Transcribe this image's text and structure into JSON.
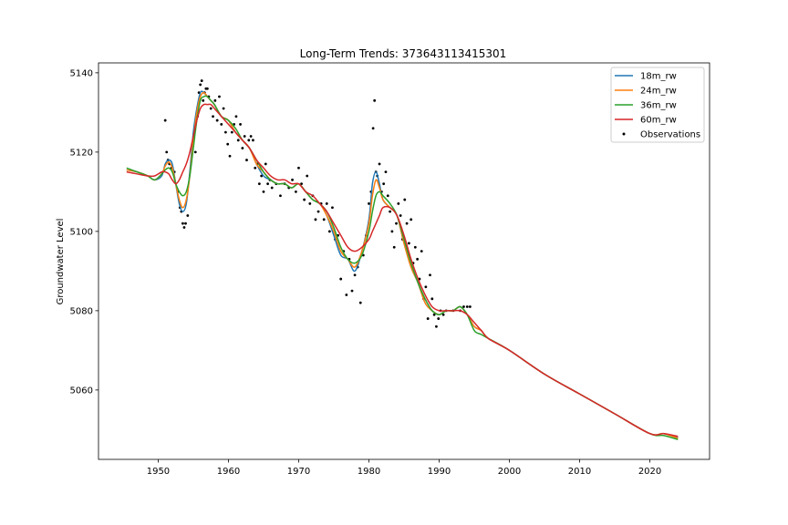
{
  "chart_data": {
    "type": "line",
    "title": "Long-Term Trends: 373643113415301",
    "xlabel": "",
    "ylabel": "Groundwater Level",
    "xlim": [
      1941.5,
      2028.5
    ],
    "ylim": [
      5042.5,
      5142.5
    ],
    "xticks": [
      1950,
      1960,
      1970,
      1980,
      1990,
      2000,
      2010,
      2020
    ],
    "yticks": [
      5060,
      5080,
      5100,
      5120,
      5140
    ],
    "grid": false,
    "legend_position": "top-right",
    "series": [
      {
        "name": "18m_rw",
        "color": "#1f77b4",
        "x": [
          1945.5,
          1947,
          1948.5,
          1949.5,
          1950.5,
          1951,
          1951.5,
          1952,
          1952.5,
          1953,
          1953.5,
          1954,
          1954.5,
          1955,
          1955.5,
          1956,
          1956.5,
          1957,
          1957.5,
          1958,
          1959,
          1960,
          1961,
          1962,
          1963,
          1964,
          1965,
          1966,
          1967,
          1968,
          1969,
          1970,
          1971,
          1972,
          1973,
          1974,
          1975,
          1976,
          1977,
          1978,
          1979,
          1980,
          1980.5,
          1981,
          1981.5,
          1982,
          1983,
          1984,
          1985,
          1986,
          1987,
          1988,
          1989,
          1990,
          1991,
          1992,
          1993,
          1994,
          1995,
          1996,
          1997,
          2000,
          2005,
          2010,
          2015,
          2020,
          2022,
          2024
        ],
        "values": [
          5115.5,
          5115,
          5114,
          5113,
          5114,
          5117,
          5118,
          5117,
          5112,
          5107,
          5105,
          5107,
          5115,
          5125,
          5131,
          5135,
          5135,
          5134,
          5133,
          5132,
          5129,
          5128,
          5125,
          5123,
          5121,
          5117,
          5114,
          5113,
          5112,
          5112,
          5111,
          5112,
          5110,
          5108,
          5107,
          5104,
          5099,
          5094,
          5093,
          5090,
          5095,
          5103,
          5112,
          5115,
          5112,
          5108,
          5106,
          5104,
          5097,
          5091,
          5087,
          5082,
          5080,
          5079,
          5080,
          5080,
          5081,
          5079,
          5076,
          5075,
          5073,
          5070,
          5064,
          5059,
          5054,
          5049,
          5049,
          5048
        ]
      },
      {
        "name": "24m_rw",
        "color": "#ff7f0e",
        "x": [
          1945.5,
          1947,
          1948.5,
          1949.5,
          1950.5,
          1951,
          1951.5,
          1952,
          1952.5,
          1953,
          1953.5,
          1954,
          1954.5,
          1955,
          1955.5,
          1956,
          1956.5,
          1957,
          1957.5,
          1958,
          1959,
          1960,
          1961,
          1962,
          1963,
          1964,
          1965,
          1966,
          1967,
          1968,
          1969,
          1970,
          1971,
          1972,
          1973,
          1974,
          1975,
          1976,
          1977,
          1978,
          1979,
          1980,
          1980.5,
          1981,
          1981.5,
          1982,
          1983,
          1984,
          1985,
          1986,
          1987,
          1988,
          1989,
          1990,
          1991,
          1992,
          1993,
          1994,
          1995,
          1996,
          1997,
          2000,
          2005,
          2010,
          2015,
          2020,
          2022,
          2024
        ],
        "values": [
          5115.5,
          5115,
          5114,
          5113,
          5114.5,
          5116.5,
          5117.5,
          5116,
          5112,
          5108,
          5106,
          5108,
          5114,
          5123,
          5130,
          5134,
          5135,
          5134,
          5133,
          5132,
          5129,
          5128,
          5125,
          5123,
          5121,
          5117,
          5115,
          5113,
          5112,
          5112,
          5111,
          5112,
          5110,
          5108,
          5107,
          5104,
          5100,
          5095,
          5093,
          5091,
          5095,
          5102,
          5109,
          5113,
          5111,
          5108,
          5106,
          5104,
          5097,
          5091,
          5087,
          5082,
          5080,
          5079,
          5080,
          5080,
          5081,
          5079,
          5076,
          5075,
          5073,
          5070,
          5064,
          5059,
          5054,
          5049,
          5049,
          5047.8
        ]
      },
      {
        "name": "36m_rw",
        "color": "#2ca02c",
        "x": [
          1945.5,
          1947,
          1948.5,
          1949.5,
          1950.5,
          1951,
          1951.5,
          1952,
          1952.5,
          1953,
          1953.5,
          1954,
          1954.5,
          1955,
          1955.5,
          1956,
          1956.5,
          1957,
          1957.5,
          1958,
          1959,
          1960,
          1961,
          1962,
          1963,
          1964,
          1965,
          1966,
          1967,
          1968,
          1969,
          1970,
          1971,
          1972,
          1973,
          1974,
          1975,
          1976,
          1977,
          1978,
          1979,
          1980,
          1980.5,
          1981,
          1981.5,
          1982,
          1983,
          1984,
          1985,
          1986,
          1987,
          1988,
          1989,
          1990,
          1991,
          1992,
          1993,
          1994,
          1995,
          1996,
          1997,
          2000,
          2005,
          2010,
          2015,
          2020,
          2022,
          2024
        ],
        "values": [
          5116,
          5115,
          5114,
          5113,
          5114.5,
          5115.5,
          5116,
          5115,
          5112,
          5110,
          5109,
          5110,
          5114,
          5121,
          5128,
          5133,
          5134,
          5134,
          5133,
          5132,
          5129,
          5128,
          5126,
          5123,
          5121,
          5118,
          5115,
          5113,
          5112,
          5112,
          5111,
          5112,
          5110,
          5108,
          5107,
          5105,
          5101,
          5096,
          5093,
          5092,
          5094,
          5100,
          5105,
          5109,
          5110,
          5109,
          5107,
          5104,
          5098,
          5092,
          5087,
          5083,
          5080,
          5079,
          5080,
          5080,
          5081,
          5079,
          5075,
          5074,
          5073,
          5070,
          5064,
          5059,
          5054,
          5049,
          5048.5,
          5047.5
        ]
      },
      {
        "name": "60m_rw",
        "color": "#d62728",
        "x": [
          1945.5,
          1947,
          1948.5,
          1949.5,
          1950.5,
          1951,
          1951.5,
          1952,
          1952.5,
          1953,
          1953.5,
          1954,
          1954.5,
          1955,
          1955.5,
          1956,
          1956.5,
          1957,
          1957.5,
          1958,
          1959,
          1960,
          1961,
          1962,
          1963,
          1964,
          1965,
          1966,
          1967,
          1968,
          1969,
          1970,
          1971,
          1972,
          1973,
          1974,
          1975,
          1976,
          1977,
          1978,
          1979,
          1980,
          1980.5,
          1981,
          1981.5,
          1982,
          1983,
          1984,
          1985,
          1986,
          1987,
          1988,
          1989,
          1990,
          1991,
          1992,
          1993,
          1994,
          1995,
          1996,
          1997,
          2000,
          2005,
          2010,
          2015,
          2020,
          2022,
          2024
        ],
        "values": [
          5115,
          5114.5,
          5114,
          5114,
          5115,
          5115,
          5114.5,
          5113,
          5112,
          5113,
          5115,
          5117,
          5120,
          5124,
          5128,
          5131,
          5132,
          5132,
          5132,
          5131,
          5129,
          5127,
          5125,
          5123,
          5121,
          5118,
          5116,
          5114,
          5113,
          5113,
          5112,
          5112,
          5110,
          5109,
          5107,
          5105,
          5102,
          5099,
          5096,
          5095,
          5096,
          5098,
          5100,
          5102,
          5104,
          5106,
          5106,
          5104,
          5099,
          5093,
          5088,
          5084,
          5081,
          5080,
          5080,
          5080,
          5080,
          5079,
          5077,
          5075,
          5073,
          5070,
          5064,
          5059,
          5054,
          5049,
          5049,
          5048.3
        ]
      },
      {
        "name": "Observations",
        "type": "scatter",
        "color": "#000000",
        "x": [
          1951,
          1951.2,
          1951.4,
          1951.6,
          1951.9,
          1952.3,
          1952.8,
          1953.1,
          1953.3,
          1953.5,
          1953.7,
          1953.9,
          1954.2,
          1955.3,
          1955.6,
          1955.8,
          1956.0,
          1956.2,
          1956.4,
          1956.6,
          1956.8,
          1957.0,
          1957.2,
          1957.5,
          1957.8,
          1958.1,
          1958.4,
          1958.7,
          1959.0,
          1959.3,
          1959.6,
          1959.9,
          1960.2,
          1960.5,
          1960.8,
          1961.1,
          1961.4,
          1961.7,
          1962.0,
          1962.3,
          1962.6,
          1962.9,
          1963.2,
          1963.5,
          1963.8,
          1964.1,
          1964.4,
          1964.7,
          1965.0,
          1965.3,
          1965.6,
          1965.9,
          1966.2,
          1966.8,
          1967.4,
          1968.0,
          1968.6,
          1969.1,
          1969.6,
          1970.0,
          1970.4,
          1970.8,
          1971.2,
          1971.6,
          1972.0,
          1972.4,
          1972.8,
          1973.2,
          1973.6,
          1974.0,
          1974.4,
          1974.8,
          1975.2,
          1975.6,
          1976.0,
          1976.4,
          1976.8,
          1977.2,
          1977.6,
          1978.0,
          1978.4,
          1978.8,
          1979.2,
          1979.6,
          1980.0,
          1980.3,
          1980.6,
          1980.8,
          1981.0,
          1981.2,
          1981.5,
          1981.8,
          1982.1,
          1982.4,
          1982.7,
          1983.0,
          1983.3,
          1983.6,
          1983.9,
          1984.2,
          1984.5,
          1984.8,
          1985.1,
          1985.4,
          1985.7,
          1986.0,
          1986.3,
          1986.6,
          1986.9,
          1987.2,
          1987.5,
          1987.8,
          1988.1,
          1988.4,
          1988.7,
          1989.0,
          1989.3,
          1989.6,
          1989.9,
          1990.2,
          1990.6,
          1991.0,
          1992.0,
          1993.0,
          1993.5,
          1994.0,
          1994.4
        ],
        "values": [
          5128,
          5120,
          5118,
          5117,
          5116,
          5115,
          5110,
          5106,
          5105,
          5102,
          5101,
          5102,
          5104,
          5120,
          5129,
          5135,
          5137,
          5138,
          5133,
          5135,
          5136,
          5136,
          5134,
          5131,
          5129,
          5133,
          5128,
          5134,
          5127,
          5131,
          5125,
          5122,
          5119,
          5125,
          5127,
          5129,
          5123,
          5127,
          5121,
          5124,
          5118,
          5123,
          5124,
          5123,
          5116,
          5117,
          5112,
          5114,
          5110,
          5117,
          5112,
          5113,
          5111,
          5112,
          5109,
          5112,
          5111,
          5113,
          5110,
          5116,
          5112,
          5108,
          5114,
          5107,
          5109,
          5103,
          5105,
          5107,
          5103,
          5107,
          5100,
          5106,
          5098,
          5099,
          5088,
          5095,
          5084,
          5093,
          5085,
          5089,
          5091,
          5082,
          5094,
          5099,
          5107,
          5110,
          5126,
          5133,
          5115,
          5114,
          5117,
          5110,
          5112,
          5115,
          5109,
          5105,
          5100,
          5096,
          5102,
          5107,
          5104,
          5098,
          5108,
          5102,
          5097,
          5103,
          5092,
          5096,
          5093,
          5088,
          5095,
          5083,
          5086,
          5078,
          5089,
          5083,
          5079,
          5076,
          5078,
          5080,
          5079,
          5080,
          5080,
          5080,
          5081,
          5081,
          5081
        ]
      }
    ]
  }
}
